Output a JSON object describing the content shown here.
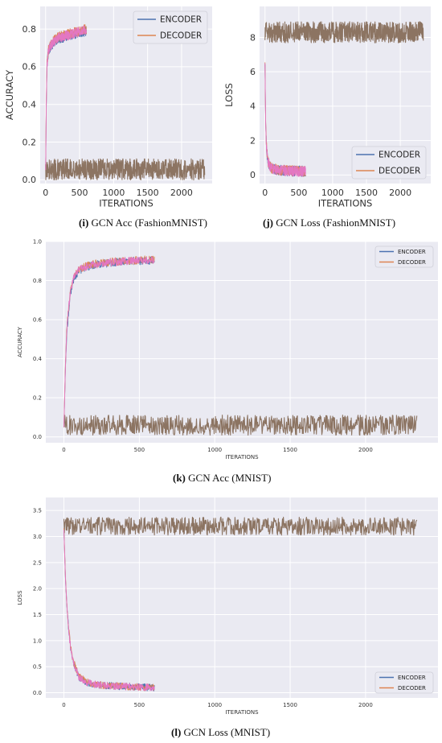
{
  "colors": {
    "encoder": "#4c72b0",
    "decoder": "#dd8452",
    "pink": "#e377c2",
    "brown": "#8c7462",
    "panel_bg": "#eaeaf2",
    "grid": "#ffffff"
  },
  "chart_data": [
    {
      "id": "i",
      "type": "line",
      "caption_tag": "(i)",
      "caption_text": "GCN Acc (FashionMNIST)",
      "xlabel": "ITERATIONS",
      "ylabel": "ACCURACY",
      "xlim": [
        -80,
        2450
      ],
      "ylim": [
        -0.02,
        0.92
      ],
      "xticks": [
        0,
        500,
        1000,
        1500,
        2000
      ],
      "xtick_labels": [
        "0",
        "500",
        "1000",
        "1500",
        "2000"
      ],
      "yticks": [
        0.0,
        0.2,
        0.4,
        0.6,
        0.8
      ],
      "ytick_labels": [
        "0.0",
        "0.2",
        "0.4",
        "0.6",
        "0.8"
      ],
      "legend": {
        "position": "top-right",
        "entries": [
          "ENCODER",
          "DECODER"
        ]
      },
      "grid": true,
      "series": [
        {
          "name": "ENCODER",
          "color_key": "encoder",
          "x": [
            0,
            10,
            20,
            40,
            60,
            100,
            150,
            200,
            300,
            400,
            500,
            600
          ],
          "y": [
            0.05,
            0.4,
            0.6,
            0.68,
            0.7,
            0.72,
            0.74,
            0.75,
            0.76,
            0.77,
            0.78,
            0.79
          ]
        },
        {
          "name": "DECODER",
          "color_key": "decoder",
          "x": [
            0,
            10,
            20,
            40,
            60,
            100,
            150,
            200,
            300,
            400,
            500,
            600
          ],
          "y": [
            0.05,
            0.42,
            0.62,
            0.69,
            0.71,
            0.73,
            0.75,
            0.76,
            0.77,
            0.78,
            0.79,
            0.8
          ]
        },
        {
          "color_key": "pink",
          "x": [
            0,
            10,
            20,
            40,
            60,
            100,
            150,
            200,
            300,
            400,
            500,
            600
          ],
          "y": [
            0.05,
            0.41,
            0.61,
            0.685,
            0.705,
            0.725,
            0.745,
            0.755,
            0.765,
            0.775,
            0.785,
            0.795
          ]
        },
        {
          "color_key": "brown",
          "x": [
            0,
            500,
            1000,
            1500,
            2000,
            2340
          ],
          "y": [
            0.055,
            0.055,
            0.055,
            0.055,
            0.055,
            0.055
          ]
        }
      ]
    },
    {
      "id": "j",
      "type": "line",
      "caption_tag": "(j)",
      "caption_text": "GCN Loss (FashionMNIST)",
      "xlabel": "ITERATIONS",
      "ylabel": "LOSS",
      "xlim": [
        -80,
        2450
      ],
      "ylim": [
        -0.5,
        9.8
      ],
      "xticks": [
        0,
        500,
        1000,
        1500,
        2000
      ],
      "xtick_labels": [
        "0",
        "500",
        "1000",
        "1500",
        "2000"
      ],
      "yticks": [
        0,
        2,
        4,
        6,
        8
      ],
      "ytick_labels": [
        "0",
        "2",
        "4",
        "6",
        "8"
      ],
      "legend": {
        "position": "bottom-right",
        "entries": [
          "ENCODER",
          "DECODER"
        ]
      },
      "grid": true,
      "series": [
        {
          "name": "ENCODER",
          "color_key": "encoder",
          "x": [
            0,
            5,
            10,
            20,
            30,
            50,
            80,
            120,
            200,
            300,
            400,
            500,
            600
          ],
          "y": [
            6.5,
            4.5,
            3.0,
            1.8,
            1.2,
            0.7,
            0.45,
            0.35,
            0.28,
            0.25,
            0.23,
            0.22,
            0.21
          ]
        },
        {
          "name": "DECODER",
          "color_key": "decoder",
          "x": [
            0,
            5,
            10,
            20,
            30,
            50,
            80,
            120,
            200,
            300,
            400,
            500,
            600
          ],
          "y": [
            6.6,
            4.6,
            3.1,
            1.85,
            1.25,
            0.72,
            0.46,
            0.36,
            0.29,
            0.26,
            0.24,
            0.22,
            0.21
          ]
        },
        {
          "color_key": "pink",
          "x": [
            0,
            5,
            10,
            20,
            30,
            50,
            80,
            120,
            200,
            300,
            400,
            500,
            600
          ],
          "y": [
            6.55,
            4.55,
            3.05,
            1.82,
            1.22,
            0.71,
            0.45,
            0.35,
            0.28,
            0.25,
            0.23,
            0.22,
            0.21
          ]
        },
        {
          "color_key": "brown",
          "x": [
            0,
            500,
            1000,
            1500,
            2000,
            2340
          ],
          "y": [
            8.3,
            8.3,
            8.3,
            8.3,
            8.3,
            8.3
          ]
        }
      ]
    },
    {
      "id": "k",
      "type": "line",
      "caption_tag": "(k)",
      "caption_text": "GCN Acc (MNIST)",
      "xlabel": "ITERATIONS",
      "ylabel": "ACCURACY",
      "xlim": [
        -120,
        2480
      ],
      "ylim": [
        -0.03,
        1.0
      ],
      "xticks": [
        0,
        500,
        1000,
        1500,
        2000
      ],
      "xtick_labels": [
        "0",
        "500",
        "1000",
        "1500",
        "2000"
      ],
      "yticks": [
        0.0,
        0.2,
        0.4,
        0.6,
        0.8,
        1.0
      ],
      "ytick_labels": [
        "0.0",
        "0.2",
        "0.4",
        "0.6",
        "0.8",
        "1.0"
      ],
      "legend": {
        "position": "top-right",
        "entries": [
          "ENCODER",
          "DECODER"
        ]
      },
      "grid": true,
      "series": [
        {
          "name": "ENCODER",
          "color_key": "encoder",
          "x": [
            0,
            10,
            20,
            40,
            60,
            100,
            150,
            200,
            300,
            400,
            500,
            600
          ],
          "y": [
            0.05,
            0.35,
            0.55,
            0.72,
            0.8,
            0.85,
            0.87,
            0.88,
            0.89,
            0.9,
            0.9,
            0.905
          ]
        },
        {
          "name": "DECODER",
          "color_key": "decoder",
          "x": [
            0,
            10,
            20,
            40,
            60,
            100,
            150,
            200,
            300,
            400,
            500,
            600
          ],
          "y": [
            0.05,
            0.37,
            0.57,
            0.73,
            0.81,
            0.86,
            0.875,
            0.885,
            0.895,
            0.9,
            0.905,
            0.91
          ]
        },
        {
          "color_key": "pink",
          "x": [
            0,
            10,
            20,
            40,
            60,
            100,
            150,
            200,
            300,
            400,
            500,
            600
          ],
          "y": [
            0.05,
            0.36,
            0.56,
            0.725,
            0.805,
            0.855,
            0.872,
            0.882,
            0.892,
            0.9,
            0.902,
            0.908
          ]
        },
        {
          "color_key": "brown",
          "x": [
            0,
            500,
            1000,
            1500,
            2000,
            2340
          ],
          "y": [
            0.06,
            0.06,
            0.06,
            0.06,
            0.06,
            0.06
          ]
        }
      ]
    },
    {
      "id": "l",
      "type": "line",
      "caption_tag": "(l)",
      "caption_text": "GCN Loss (MNIST)",
      "xlabel": "ITERATIONS",
      "ylabel": "LOSS",
      "xlim": [
        -120,
        2480
      ],
      "ylim": [
        -0.1,
        3.75
      ],
      "xticks": [
        0,
        500,
        1000,
        1500,
        2000
      ],
      "xtick_labels": [
        "0",
        "500",
        "1000",
        "1500",
        "2000"
      ],
      "yticks": [
        0.0,
        0.5,
        1.0,
        1.5,
        2.0,
        2.5,
        3.0,
        3.5
      ],
      "ytick_labels": [
        "0.0",
        "0.5",
        "1.0",
        "1.5",
        "2.0",
        "2.5",
        "3.0",
        "3.5"
      ],
      "legend": {
        "position": "bottom-right",
        "entries": [
          "ENCODER",
          "DECODER"
        ]
      },
      "grid": true,
      "series": [
        {
          "name": "ENCODER",
          "color_key": "encoder",
          "x": [
            0,
            10,
            20,
            40,
            60,
            100,
            150,
            200,
            300,
            400,
            500,
            600
          ],
          "y": [
            3.1,
            2.2,
            1.6,
            0.95,
            0.6,
            0.3,
            0.2,
            0.16,
            0.13,
            0.12,
            0.11,
            0.1
          ]
        },
        {
          "name": "DECODER",
          "color_key": "decoder",
          "x": [
            0,
            10,
            20,
            40,
            60,
            100,
            150,
            200,
            300,
            400,
            500,
            600
          ],
          "y": [
            3.15,
            2.25,
            1.65,
            0.98,
            0.62,
            0.31,
            0.21,
            0.16,
            0.13,
            0.12,
            0.11,
            0.1
          ]
        },
        {
          "color_key": "pink",
          "x": [
            0,
            10,
            20,
            40,
            60,
            100,
            150,
            200,
            300,
            400,
            500,
            600
          ],
          "y": [
            3.12,
            2.22,
            1.62,
            0.96,
            0.61,
            0.3,
            0.2,
            0.16,
            0.13,
            0.12,
            0.11,
            0.1
          ]
        },
        {
          "color_key": "brown",
          "x": [
            0,
            500,
            1000,
            1500,
            2000,
            2340
          ],
          "y": [
            3.2,
            3.2,
            3.2,
            3.2,
            3.2,
            3.2
          ]
        }
      ]
    }
  ]
}
